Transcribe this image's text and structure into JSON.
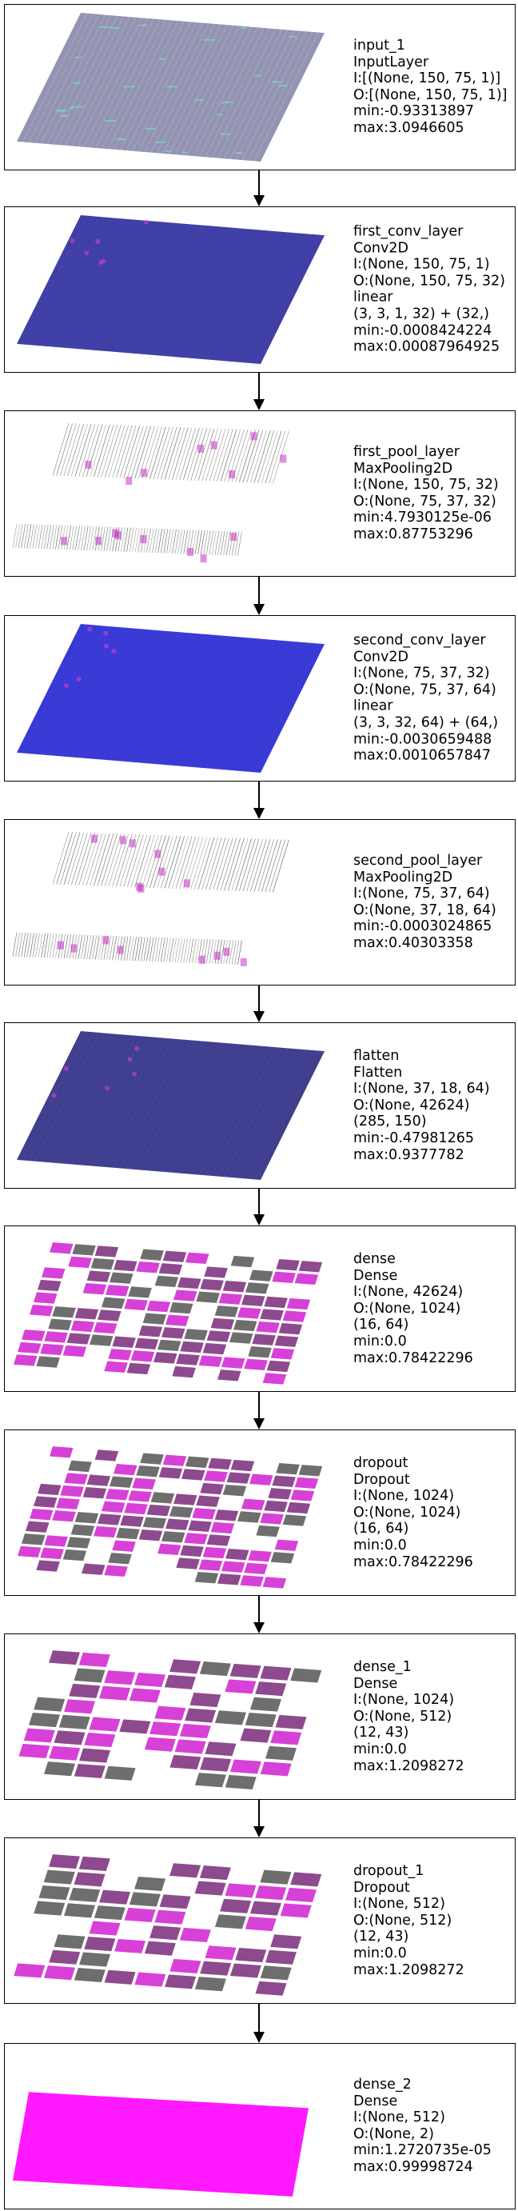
{
  "layers": [
    {
      "name": "input_1",
      "type": "InputLayer",
      "lines": [
        "I:[(None, 150, 75, 1)]",
        "O:[(None, 150, 75, 1)]",
        "min:-0.93313897",
        "max:3.0946605"
      ],
      "viz": "input",
      "color": "#3a3a72"
    },
    {
      "name": "first_conv_layer",
      "type": "Conv2D",
      "lines": [
        "I:(None, 150, 75, 1)",
        "O:(None, 150, 75, 32)",
        "linear",
        "(3, 3, 1, 32) + (32,)",
        "min:-0.0008424224",
        "max:0.00087964925"
      ],
      "viz": "solid",
      "color": "#2a2a9a"
    },
    {
      "name": "first_pool_layer",
      "type": "MaxPooling2D",
      "lines": [
        "I:(None, 150, 75, 32)",
        "O:(None, 75, 37, 32)",
        "min:4.7930125e-06",
        "max:0.87753296"
      ],
      "viz": "pool",
      "color": "#555566"
    },
    {
      "name": "second_conv_layer",
      "type": "Conv2D",
      "lines": [
        "I:(None, 75, 37, 32)",
        "O:(None, 75, 37, 64)",
        "linear",
        "(3, 3, 32, 64) + (64,)",
        "min:-0.0030659488",
        "max:0.0010657847"
      ],
      "viz": "solid",
      "color": "#2323d0"
    },
    {
      "name": "second_pool_layer",
      "type": "MaxPooling2D",
      "lines": [
        "I:(None, 75, 37, 64)",
        "O:(None, 37, 18, 64)",
        "min:-0.0003024865",
        "max:0.40303358"
      ],
      "viz": "pool",
      "color": "#555566"
    },
    {
      "name": "flatten",
      "type": "Flatten",
      "lines": [
        "I:(None, 37, 18, 64)",
        "O:(None, 42624)",
        "(285, 150)",
        "min:-0.47981265",
        "max:0.9377782"
      ],
      "viz": "solid",
      "color": "#2a2a80"
    },
    {
      "name": "dense",
      "type": "Dense",
      "lines": [
        "I:(None, 42624)",
        "O:(None, 1024)",
        "(16, 64)",
        "min:0.0",
        "max:0.78422296"
      ],
      "viz": "checker",
      "color": "#8a2a8a"
    },
    {
      "name": "dropout",
      "type": "Dropout",
      "lines": [
        "I:(None, 1024)",
        "O:(None, 1024)",
        "(16, 64)",
        "min:0.0",
        "max:0.78422296"
      ],
      "viz": "checker",
      "color": "#8a2a8a"
    },
    {
      "name": "dense_1",
      "type": "Dense",
      "lines": [
        "I:(None, 1024)",
        "O:(None, 512)",
        "(12, 43)",
        "min:0.0",
        "max:1.2098272"
      ],
      "viz": "checker2",
      "color": "#c020c0"
    },
    {
      "name": "dropout_1",
      "type": "Dropout",
      "lines": [
        "I:(None, 512)",
        "O:(None, 512)",
        "(12, 43)",
        "min:0.0",
        "max:1.2098272"
      ],
      "viz": "checker2",
      "color": "#c020c0"
    },
    {
      "name": "dense_2",
      "type": "Dense",
      "lines": [
        "I:(None, 512)",
        "O:(None, 2)",
        "min:1.2720735e-05",
        "max:0.99998724"
      ],
      "viz": "magenta",
      "color": "#ff00ff"
    }
  ]
}
